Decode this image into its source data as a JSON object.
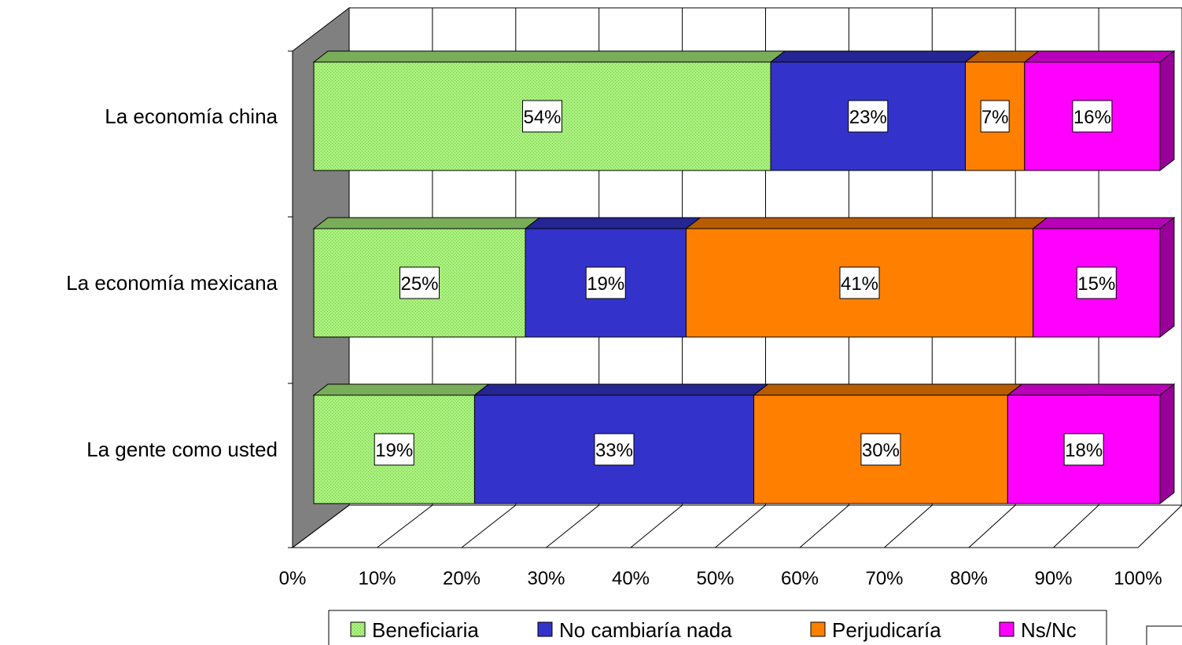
{
  "chart_data": {
    "type": "bar",
    "orientation": "horizontal",
    "stacked": "percent",
    "three_d": true,
    "categories": [
      "La economía china",
      "La economía mexicana",
      "La gente como usted"
    ],
    "series": [
      {
        "name": "Beneficiaria",
        "values": [
          54,
          25,
          19
        ],
        "color": "#a8f07c",
        "labels": [
          "54%",
          "25%",
          "19%"
        ]
      },
      {
        "name": "No cambiaría nada",
        "values": [
          23,
          19,
          33
        ],
        "color": "#3333cc",
        "labels": [
          "23%",
          "19%",
          "33%"
        ]
      },
      {
        "name": "Perjudicaría",
        "values": [
          7,
          41,
          30
        ],
        "color": "#ff8000",
        "labels": [
          "7%",
          "41%",
          "30%"
        ]
      },
      {
        "name": "Ns/Nc",
        "values": [
          16,
          15,
          18
        ],
        "color": "#ff00ff",
        "labels": [
          "16%",
          "15%",
          "18%"
        ]
      }
    ],
    "x_ticks": [
      "0%",
      "10%",
      "20%",
      "30%",
      "40%",
      "50%",
      "60%",
      "70%",
      "80%",
      "90%",
      "100%"
    ],
    "xlim": [
      0,
      100
    ],
    "grid": true,
    "legend_position": "bottom",
    "side_wall_color": "#808080"
  }
}
